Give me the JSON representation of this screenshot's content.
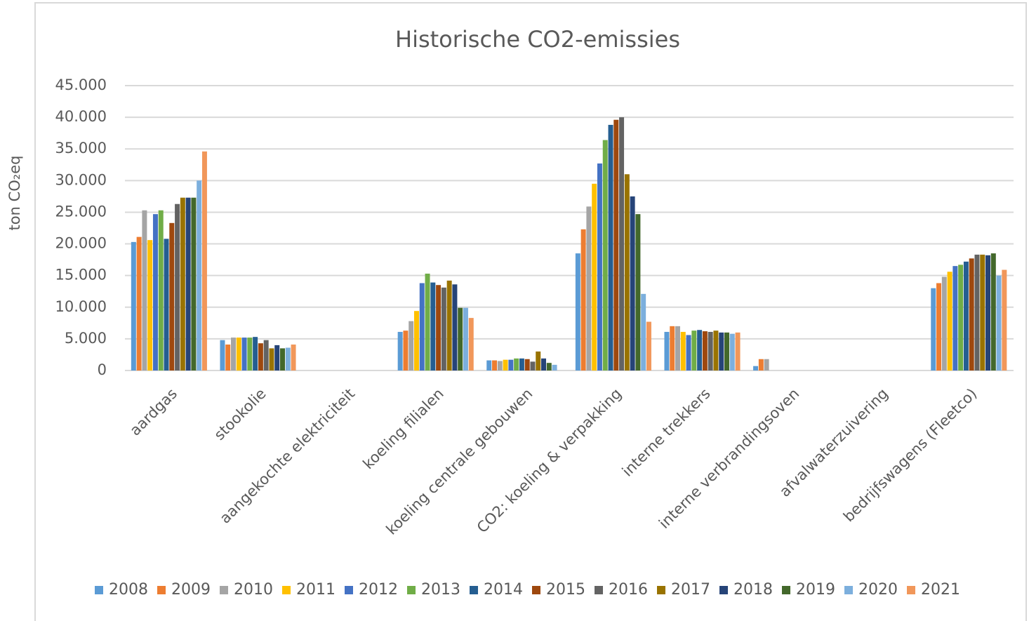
{
  "chart_data": {
    "type": "bar",
    "title": "Historische CO2-emissies",
    "y_label": "ton CO₂eq",
    "categories": [
      "aardgas",
      "stookolie",
      "aangekochte elektriciteit",
      "koeling filialen",
      "koeling centrale gebouwen",
      "CO2: koeling & verpakking",
      "interne trekkers",
      "interne verbrandingsoven",
      "afvalwaterzuivering",
      "bedrijfswagens (Fleetco)"
    ],
    "series": [
      {
        "name": "2008",
        "color": "#5b9bd5",
        "values": [
          20300,
          4800,
          0,
          6100,
          1600,
          18500,
          6100,
          700,
          0,
          13000
        ]
      },
      {
        "name": "2009",
        "color": "#ed7d31",
        "values": [
          21100,
          4100,
          0,
          6300,
          1600,
          22300,
          7000,
          1800,
          0,
          13800
        ]
      },
      {
        "name": "2010",
        "color": "#a5a5a5",
        "values": [
          25300,
          5200,
          0,
          7800,
          1500,
          25900,
          7000,
          1800,
          0,
          14800
        ]
      },
      {
        "name": "2011",
        "color": "#ffc000",
        "values": [
          20600,
          5200,
          0,
          9400,
          1700,
          29500,
          6100,
          0,
          0,
          15600
        ]
      },
      {
        "name": "2012",
        "color": "#4472c4",
        "values": [
          24700,
          5200,
          0,
          13800,
          1700,
          32700,
          5600,
          0,
          0,
          16500
        ]
      },
      {
        "name": "2013",
        "color": "#70ad47",
        "values": [
          25300,
          5200,
          0,
          15300,
          1900,
          36400,
          6300,
          0,
          0,
          16700
        ]
      },
      {
        "name": "2014",
        "color": "#255e91",
        "values": [
          20800,
          5300,
          0,
          13900,
          1900,
          38800,
          6400,
          0,
          0,
          17200
        ]
      },
      {
        "name": "2015",
        "color": "#9e480e",
        "values": [
          23300,
          4300,
          0,
          13500,
          1800,
          39600,
          6200,
          0,
          0,
          17700
        ]
      },
      {
        "name": "2016",
        "color": "#636363",
        "values": [
          26300,
          4800,
          0,
          13100,
          1400,
          40000,
          6100,
          0,
          0,
          18300
        ]
      },
      {
        "name": "2017",
        "color": "#997300",
        "values": [
          27300,
          3500,
          0,
          14200,
          3000,
          31000,
          6300,
          0,
          0,
          18300
        ]
      },
      {
        "name": "2018",
        "color": "#264478",
        "values": [
          27300,
          4000,
          0,
          13600,
          1900,
          27500,
          6000,
          0,
          0,
          18200
        ]
      },
      {
        "name": "2019",
        "color": "#43682b",
        "values": [
          27300,
          3500,
          0,
          9900,
          1200,
          24700,
          6000,
          0,
          0,
          18500
        ]
      },
      {
        "name": "2020",
        "color": "#7cafdd",
        "values": [
          30000,
          3600,
          0,
          9900,
          900,
          12100,
          5800,
          0,
          0,
          15000
        ]
      },
      {
        "name": "2021",
        "color": "#f1975a",
        "values": [
          34600,
          4100,
          0,
          8300,
          0,
          7700,
          6000,
          0,
          0,
          15900
        ]
      }
    ],
    "ylim": [
      0,
      45000
    ],
    "yticks": [
      0,
      {
        "value": 5000,
        "label": "5.000"
      },
      {
        "value": 10000,
        "label": "10.000"
      },
      {
        "value": 15000,
        "label": "15.000"
      },
      {
        "value": 20000,
        "label": "20.000"
      },
      {
        "value": 25000,
        "label": "25.000"
      },
      {
        "value": 30000,
        "label": "30.000"
      },
      {
        "value": 35000,
        "label": "35.000"
      },
      {
        "value": 40000,
        "label": "40.000"
      },
      {
        "value": 45000,
        "label": "45.000"
      }
    ],
    "grid": true,
    "legend": "bottom"
  }
}
